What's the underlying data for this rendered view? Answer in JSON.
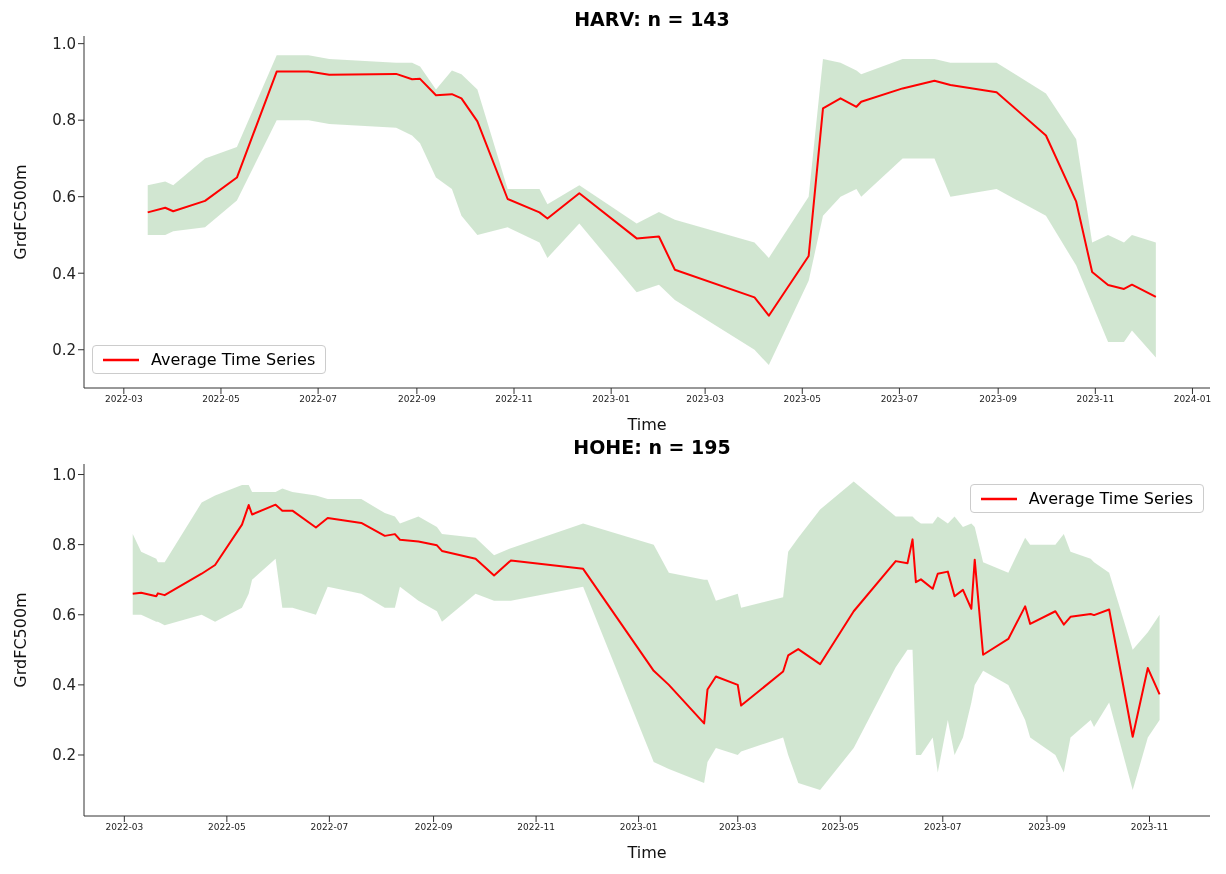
{
  "chart_data": [
    {
      "type": "line",
      "title": "HARV: n = 143",
      "xlabel": "Time",
      "ylabel": "GrdFC500m",
      "xlim": [
        "2022-02-04",
        "2024-01-12"
      ],
      "ylim": [
        0.1,
        1.02
      ],
      "xticks": [
        "2022-03",
        "2022-05",
        "2022-07",
        "2022-09",
        "2022-11",
        "2023-01",
        "2023-03",
        "2023-05",
        "2023-07",
        "2023-09",
        "2023-11",
        "2024-01"
      ],
      "yticks": [
        {
          "value": 0.2,
          "label": "0.2"
        },
        {
          "value": 0.4,
          "label": "0.4"
        },
        {
          "value": 0.6,
          "label": "0.6"
        },
        {
          "value": 0.8,
          "label": "0.8"
        },
        {
          "value": 1.0,
          "label": "1.0"
        }
      ],
      "legend": "bottom left",
      "x": [
        "2022-03-16",
        "2022-03-27",
        "2022-04-01",
        "2022-04-21",
        "2022-05-11",
        "2022-06-05",
        "2022-06-25",
        "2022-07-08",
        "2022-08-19",
        "2022-08-29",
        "2022-09-03",
        "2022-09-13",
        "2022-09-23",
        "2022-09-29",
        "2022-10-09",
        "2022-10-28",
        "2022-11-17",
        "2022-11-22",
        "2022-12-12",
        "2023-01-17",
        "2023-01-31",
        "2023-02-10",
        "2023-04-01",
        "2023-04-10",
        "2023-05-05",
        "2023-05-14",
        "2023-05-25",
        "2023-06-04",
        "2023-06-07",
        "2023-07-03",
        "2023-07-23",
        "2023-08-02",
        "2023-08-31",
        "2023-10-01",
        "2023-10-20",
        "2023-10-30",
        "2023-11-09",
        "2023-11-19",
        "2023-11-24",
        "2023-12-09"
      ],
      "series": [
        {
          "name": "Average Time Series",
          "color": "#ff0000",
          "values": [
            0.559,
            0.571,
            0.562,
            0.589,
            0.65,
            0.927,
            0.927,
            0.919,
            0.921,
            0.907,
            0.908,
            0.865,
            0.868,
            0.857,
            0.797,
            0.594,
            0.559,
            0.543,
            0.609,
            0.491,
            0.496,
            0.409,
            0.337,
            0.289,
            0.445,
            0.831,
            0.857,
            0.835,
            0.848,
            0.883,
            0.903,
            0.892,
            0.873,
            0.76,
            0.587,
            0.403,
            0.369,
            0.359,
            0.37,
            0.338
          ],
          "lower": [
            0.5,
            0.5,
            0.51,
            0.52,
            0.59,
            0.8,
            0.8,
            0.79,
            0.78,
            0.76,
            0.74,
            0.65,
            0.62,
            0.55,
            0.5,
            0.52,
            0.48,
            0.44,
            0.53,
            0.35,
            0.37,
            0.33,
            0.2,
            0.16,
            0.38,
            0.55,
            0.6,
            0.62,
            0.6,
            0.7,
            0.7,
            0.6,
            0.62,
            0.55,
            0.42,
            0.32,
            0.22,
            0.22,
            0.25,
            0.18
          ],
          "upper": [
            0.63,
            0.64,
            0.63,
            0.7,
            0.73,
            0.97,
            0.97,
            0.96,
            0.95,
            0.95,
            0.94,
            0.88,
            0.93,
            0.92,
            0.88,
            0.62,
            0.62,
            0.58,
            0.63,
            0.53,
            0.56,
            0.54,
            0.48,
            0.44,
            0.6,
            0.96,
            0.95,
            0.93,
            0.92,
            0.96,
            0.96,
            0.95,
            0.95,
            0.87,
            0.75,
            0.48,
            0.5,
            0.48,
            0.5,
            0.48
          ]
        }
      ]
    },
    {
      "type": "line",
      "title": "HOHE: n = 195",
      "xlabel": "Time",
      "ylabel": "GrdFC500m",
      "xlim": [
        "2022-02-05",
        "2023-12-07"
      ],
      "ylim": [
        0.026,
        1.03
      ],
      "xticks": [
        "2022-03",
        "2022-05",
        "2022-07",
        "2022-09",
        "2022-11",
        "2023-01",
        "2023-03",
        "2023-05",
        "2023-07",
        "2023-09",
        "2023-11"
      ],
      "yticks": [
        {
          "value": 0.2,
          "label": "0.2"
        },
        {
          "value": 0.4,
          "label": "0.4"
        },
        {
          "value": 0.6,
          "label": "0.6"
        },
        {
          "value": 0.8,
          "label": "0.8"
        },
        {
          "value": 1.0,
          "label": "1.0"
        }
      ],
      "legend": "top right",
      "x": [
        "2022-03-06",
        "2022-03-11",
        "2022-03-20",
        "2022-03-21",
        "2022-03-25",
        "2022-04-16",
        "2022-04-24",
        "2022-05-10",
        "2022-05-14",
        "2022-05-16",
        "2022-05-30",
        "2022-06-03",
        "2022-06-09",
        "2022-06-23",
        "2022-06-30",
        "2022-07-20",
        "2022-08-03",
        "2022-08-09",
        "2022-08-12",
        "2022-08-23",
        "2022-09-03",
        "2022-09-06",
        "2022-09-26",
        "2022-10-07",
        "2022-10-17",
        "2022-11-29",
        "2023-01-10",
        "2023-01-19",
        "2023-02-09",
        "2023-02-11",
        "2023-02-16",
        "2023-03-01",
        "2023-03-03",
        "2023-03-28",
        "2023-03-31",
        "2023-04-06",
        "2023-04-19",
        "2023-05-09",
        "2023-06-03",
        "2023-06-10",
        "2023-06-13",
        "2023-06-15",
        "2023-06-18",
        "2023-06-25",
        "2023-06-28",
        "2023-07-04",
        "2023-07-08",
        "2023-07-13",
        "2023-07-18",
        "2023-07-20",
        "2023-07-25",
        "2023-08-09",
        "2023-08-19",
        "2023-08-22",
        "2023-09-06",
        "2023-09-11",
        "2023-09-15",
        "2023-09-27",
        "2023-09-29",
        "2023-10-08",
        "2023-10-22",
        "2023-10-31",
        "2023-11-07"
      ],
      "series": [
        {
          "name": "Average Time Series",
          "color": "#ff0000",
          "values": [
            0.66,
            0.663,
            0.653,
            0.661,
            0.656,
            0.717,
            0.742,
            0.857,
            0.913,
            0.886,
            0.914,
            0.897,
            0.897,
            0.849,
            0.876,
            0.862,
            0.825,
            0.83,
            0.814,
            0.809,
            0.798,
            0.782,
            0.76,
            0.712,
            0.755,
            0.731,
            0.44,
            0.4,
            0.29,
            0.387,
            0.424,
            0.4,
            0.341,
            0.438,
            0.484,
            0.502,
            0.459,
            0.61,
            0.753,
            0.747,
            0.815,
            0.693,
            0.701,
            0.674,
            0.717,
            0.723,
            0.653,
            0.671,
            0.617,
            0.757,
            0.486,
            0.531,
            0.624,
            0.574,
            0.61,
            0.572,
            0.594,
            0.602,
            0.599,
            0.615,
            0.252,
            0.448,
            0.373
          ],
          "lower": [
            0.6,
            0.6,
            0.58,
            0.58,
            0.57,
            0.6,
            0.58,
            0.62,
            0.66,
            0.7,
            0.76,
            0.62,
            0.62,
            0.6,
            0.68,
            0.66,
            0.62,
            0.62,
            0.68,
            0.64,
            0.61,
            0.58,
            0.66,
            0.64,
            0.64,
            0.68,
            0.18,
            0.16,
            0.12,
            0.18,
            0.22,
            0.2,
            0.21,
            0.25,
            0.2,
            0.12,
            0.1,
            0.22,
            0.45,
            0.5,
            0.5,
            0.2,
            0.2,
            0.25,
            0.15,
            0.3,
            0.2,
            0.25,
            0.35,
            0.4,
            0.44,
            0.4,
            0.3,
            0.25,
            0.2,
            0.15,
            0.25,
            0.3,
            0.28,
            0.35,
            0.1,
            0.25,
            0.3
          ],
          "upper": [
            0.83,
            0.78,
            0.76,
            0.75,
            0.75,
            0.92,
            0.94,
            0.97,
            0.97,
            0.95,
            0.95,
            0.96,
            0.95,
            0.94,
            0.93,
            0.93,
            0.89,
            0.88,
            0.86,
            0.88,
            0.85,
            0.83,
            0.82,
            0.77,
            0.79,
            0.86,
            0.8,
            0.72,
            0.7,
            0.7,
            0.64,
            0.66,
            0.62,
            0.65,
            0.78,
            0.82,
            0.9,
            0.98,
            0.88,
            0.88,
            0.88,
            0.87,
            0.86,
            0.86,
            0.88,
            0.86,
            0.88,
            0.85,
            0.86,
            0.85,
            0.75,
            0.72,
            0.82,
            0.8,
            0.8,
            0.83,
            0.78,
            0.76,
            0.75,
            0.72,
            0.5,
            0.55,
            0.6
          ]
        }
      ]
    }
  ]
}
